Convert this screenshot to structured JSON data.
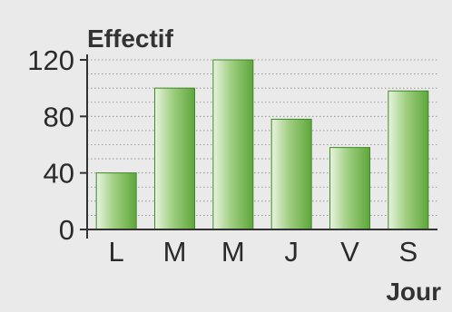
{
  "chart_data": {
    "type": "bar",
    "ylabel": "Effectif",
    "xlabel": "Jour",
    "categories": [
      "L",
      "M",
      "M",
      "J",
      "V",
      "S"
    ],
    "values": [
      40,
      100,
      120,
      78,
      58,
      98
    ],
    "ylim": [
      0,
      120
    ],
    "yticks": [
      0,
      40,
      80,
      120
    ],
    "grid": true,
    "colors": {
      "background": "#eaeaea",
      "bar_light": "#e8f3df",
      "bar_mid": "#9fce80",
      "bar_dark": "#5ea63b",
      "bar_edge": "#3f8a25",
      "axis": "#333333",
      "grid": "#8a8a8a"
    }
  }
}
